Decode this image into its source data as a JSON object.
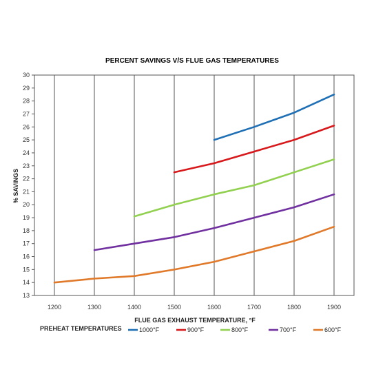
{
  "chart_data": {
    "type": "line",
    "title": "PERCENT SAVINGS V/S FLUE GAS TEMPERATURES",
    "xlabel": "FLUE GAS EXHAUST TEMPERATURE, °F",
    "ylabel": "% SAVINGS",
    "legend_title": "PREHEAT TEMPERATURES",
    "legend_position": "bottom",
    "xlim": [
      1150,
      1950
    ],
    "ylim": [
      13,
      30
    ],
    "x_ticks": [
      "1200",
      "1300",
      "1400",
      "1500",
      "1600",
      "1700",
      "1800",
      "1900"
    ],
    "y_ticks": [
      "13",
      "14",
      "15",
      "16",
      "17",
      "18",
      "19",
      "20",
      "21",
      "22",
      "23",
      "24",
      "25",
      "26",
      "27",
      "28",
      "29",
      "30"
    ],
    "grid": "vertical",
    "series": [
      {
        "name": "1000°F",
        "color": "#1f6fb5",
        "points": [
          [
            1600,
            25.0
          ],
          [
            1700,
            26.0
          ],
          [
            1800,
            27.1
          ],
          [
            1900,
            28.5
          ]
        ]
      },
      {
        "name": "900°F",
        "color": "#d7191c",
        "points": [
          [
            1500,
            22.5
          ],
          [
            1600,
            23.2
          ],
          [
            1700,
            24.1
          ],
          [
            1800,
            25.0
          ],
          [
            1900,
            26.1
          ]
        ]
      },
      {
        "name": "800°F",
        "color": "#92d050",
        "points": [
          [
            1400,
            19.1
          ],
          [
            1500,
            20.0
          ],
          [
            1600,
            20.8
          ],
          [
            1700,
            21.5
          ],
          [
            1800,
            22.5
          ],
          [
            1900,
            23.5
          ]
        ]
      },
      {
        "name": "700°F",
        "color": "#7030a0",
        "points": [
          [
            1300,
            16.5
          ],
          [
            1400,
            17.0
          ],
          [
            1500,
            17.5
          ],
          [
            1600,
            18.2
          ],
          [
            1700,
            19.0
          ],
          [
            1800,
            19.8
          ],
          [
            1900,
            20.8
          ]
        ]
      },
      {
        "name": "600°F",
        "color": "#e07a2a",
        "points": [
          [
            1200,
            14.0
          ],
          [
            1300,
            14.3
          ],
          [
            1400,
            14.5
          ],
          [
            1500,
            15.0
          ],
          [
            1600,
            15.6
          ],
          [
            1700,
            16.4
          ],
          [
            1800,
            17.2
          ],
          [
            1900,
            18.3
          ]
        ]
      }
    ]
  }
}
